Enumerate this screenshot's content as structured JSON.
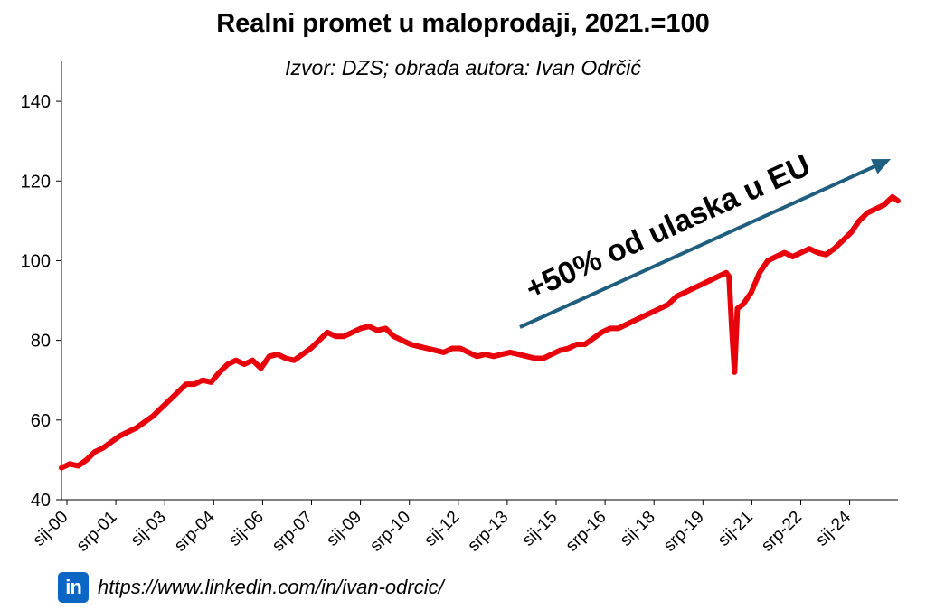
{
  "chart_data": {
    "type": "line",
    "title": "Realni promet u maloprodaji, 2021.=100",
    "subtitle": "Izvor: DZS; obrada autora: Ivan Odrčić",
    "ylim": [
      40,
      150
    ],
    "yticks": [
      40,
      60,
      80,
      100,
      120,
      140
    ],
    "x_tick_labels": [
      "sij-00",
      "srp-01",
      "sij-03",
      "srp-04",
      "sij-06",
      "srp-07",
      "sij-09",
      "srp-10",
      "sij-12",
      "srp-13",
      "sij-15",
      "srp-16",
      "sij-18",
      "srp-19",
      "sij-21",
      "srp-22",
      "sij-24"
    ],
    "x_start": "2000-01",
    "x_end": "2025-03",
    "grid": false,
    "series": [
      {
        "color": "#e8000b",
        "points": [
          [
            "2000-01",
            48
          ],
          [
            "2000-04",
            49
          ],
          [
            "2000-07",
            48.5
          ],
          [
            "2000-10",
            50
          ],
          [
            "2001-01",
            52
          ],
          [
            "2001-04",
            53
          ],
          [
            "2001-07",
            54.5
          ],
          [
            "2001-10",
            56
          ],
          [
            "2002-01",
            57
          ],
          [
            "2002-04",
            58
          ],
          [
            "2002-07",
            59.5
          ],
          [
            "2002-10",
            61
          ],
          [
            "2003-01",
            63
          ],
          [
            "2003-04",
            65
          ],
          [
            "2003-07",
            67
          ],
          [
            "2003-10",
            69
          ],
          [
            "2004-01",
            69
          ],
          [
            "2004-04",
            70
          ],
          [
            "2004-07",
            69.5
          ],
          [
            "2004-10",
            72
          ],
          [
            "2005-01",
            74
          ],
          [
            "2005-04",
            75
          ],
          [
            "2005-07",
            74
          ],
          [
            "2005-10",
            75
          ],
          [
            "2006-01",
            73
          ],
          [
            "2006-04",
            76
          ],
          [
            "2006-07",
            76.5
          ],
          [
            "2006-10",
            75.5
          ],
          [
            "2007-01",
            75
          ],
          [
            "2007-04",
            76.5
          ],
          [
            "2007-07",
            78
          ],
          [
            "2007-10",
            80
          ],
          [
            "2008-01",
            82
          ],
          [
            "2008-04",
            81
          ],
          [
            "2008-07",
            81
          ],
          [
            "2008-10",
            82
          ],
          [
            "2009-01",
            83
          ],
          [
            "2009-04",
            83.5
          ],
          [
            "2009-07",
            82.5
          ],
          [
            "2009-10",
            83
          ],
          [
            "2010-01",
            81
          ],
          [
            "2010-04",
            80
          ],
          [
            "2010-07",
            79
          ],
          [
            "2010-10",
            78.5
          ],
          [
            "2011-01",
            78
          ],
          [
            "2011-04",
            77.5
          ],
          [
            "2011-07",
            77
          ],
          [
            "2011-10",
            78
          ],
          [
            "2012-01",
            78
          ],
          [
            "2012-04",
            77
          ],
          [
            "2012-07",
            76
          ],
          [
            "2012-10",
            76.5
          ],
          [
            "2013-01",
            76
          ],
          [
            "2013-04",
            76.5
          ],
          [
            "2013-07",
            77
          ],
          [
            "2013-10",
            76.5
          ],
          [
            "2014-01",
            76
          ],
          [
            "2014-04",
            75.5
          ],
          [
            "2014-07",
            75.5
          ],
          [
            "2014-10",
            76.5
          ],
          [
            "2015-01",
            77.5
          ],
          [
            "2015-04",
            78
          ],
          [
            "2015-07",
            79
          ],
          [
            "2015-10",
            79
          ],
          [
            "2016-01",
            80.5
          ],
          [
            "2016-04",
            82
          ],
          [
            "2016-07",
            83
          ],
          [
            "2016-10",
            83
          ],
          [
            "2017-01",
            84
          ],
          [
            "2017-04",
            85
          ],
          [
            "2017-07",
            86
          ],
          [
            "2017-10",
            87
          ],
          [
            "2018-01",
            88
          ],
          [
            "2018-04",
            89
          ],
          [
            "2018-07",
            91
          ],
          [
            "2018-10",
            92
          ],
          [
            "2019-01",
            93
          ],
          [
            "2019-04",
            94
          ],
          [
            "2019-07",
            95
          ],
          [
            "2019-10",
            96
          ],
          [
            "2020-01",
            97
          ],
          [
            "2020-02",
            96
          ],
          [
            "2020-03",
            83
          ],
          [
            "2020-04",
            72
          ],
          [
            "2020-05",
            88
          ],
          [
            "2020-07",
            89
          ],
          [
            "2020-10",
            92
          ],
          [
            "2021-01",
            97
          ],
          [
            "2021-04",
            100
          ],
          [
            "2021-07",
            101
          ],
          [
            "2021-10",
            102
          ],
          [
            "2022-01",
            101
          ],
          [
            "2022-04",
            102
          ],
          [
            "2022-07",
            103
          ],
          [
            "2022-10",
            102
          ],
          [
            "2023-01",
            101.5
          ],
          [
            "2023-04",
            103
          ],
          [
            "2023-07",
            105
          ],
          [
            "2023-10",
            107
          ],
          [
            "2024-01",
            110
          ],
          [
            "2024-04",
            112
          ],
          [
            "2024-07",
            113
          ],
          [
            "2024-10",
            114
          ],
          [
            "2025-01",
            116
          ],
          [
            "2025-03",
            115
          ]
        ]
      }
    ],
    "annotation": {
      "text": "+50% od ulaska u EU",
      "arrow_color": "#1f5e7e"
    }
  },
  "footer": {
    "badge": "in",
    "url": "https://www.linkedin.com/in/ivan-odrcic/"
  }
}
